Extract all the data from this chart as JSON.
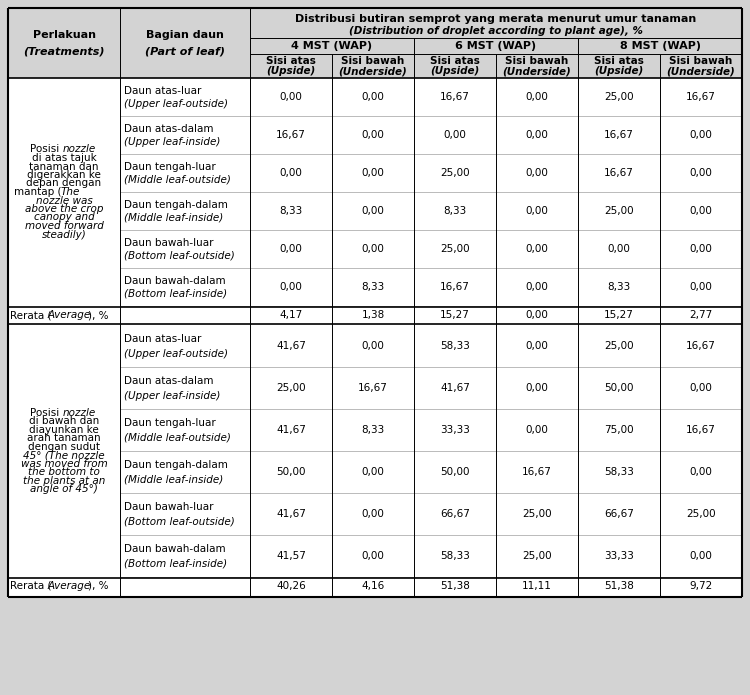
{
  "title_line1": "Distribusi butiran semprot yang merata menurut umur tanaman",
  "title_line2": "(Distribution of droplet according to plant age), %",
  "subheaders": [
    "4 MST (WAP)",
    "6 MST (WAP)",
    "8 MST (WAP)"
  ],
  "subsubheaders": [
    "Sisi atas\n(Upside)",
    "Sisi bawah\n(Underside)",
    "Sisi atas\n(Upside)",
    "Sisi bawah\n(Underside)",
    "Sisi atas\n(Upside)",
    "Sisi bawah\n(Underside)"
  ],
  "section1_treatment": [
    "Posisi nozzle",
    "di atas tajuk",
    "tanaman dan",
    "digerakkan ke",
    "depan dengan",
    "mantap (The",
    "nozzle was",
    "above the crop",
    "canopy and",
    "moved forward",
    "steadily)"
  ],
  "section1_italic_lines": [
    6,
    7,
    8,
    9,
    10
  ],
  "section1_rows": [
    {
      "leaf_id": "Daun atas-luar\n(Upper leaf-outside)",
      "values": [
        "0,00",
        "0,00",
        "16,67",
        "0,00",
        "25,00",
        "16,67"
      ]
    },
    {
      "leaf_id": "Daun atas-dalam\n(Upper leaf-inside)",
      "values": [
        "16,67",
        "0,00",
        "0,00",
        "0,00",
        "16,67",
        "0,00"
      ]
    },
    {
      "leaf_id": "Daun tengah-luar\n(Middle leaf-outside)",
      "values": [
        "0,00",
        "0,00",
        "25,00",
        "0,00",
        "16,67",
        "0,00"
      ]
    },
    {
      "leaf_id": "Daun tengah-dalam\n(Middle leaf-inside)",
      "values": [
        "8,33",
        "0,00",
        "8,33",
        "0,00",
        "25,00",
        "0,00"
      ]
    },
    {
      "leaf_id": "Daun bawah-luar\n(Bottom leaf-outside)",
      "values": [
        "0,00",
        "0,00",
        "25,00",
        "0,00",
        "0,00",
        "0,00"
      ]
    },
    {
      "leaf_id": "Daun bawah-dalam\n(Bottom leaf-inside)",
      "values": [
        "0,00",
        "8,33",
        "16,67",
        "0,00",
        "8,33",
        "0,00"
      ]
    }
  ],
  "section1_avg": [
    "4,17",
    "1,38",
    "15,27",
    "0,00",
    "15,27",
    "2,77"
  ],
  "section2_treatment": [
    "Posisi nozzle",
    "di bawah dan",
    "diayunkan ke",
    "arah tanaman",
    "dengan sudut",
    "45° (The nozzle",
    "was moved from",
    "the bottom to",
    "the plants at an",
    "angle of 45°)"
  ],
  "section2_italic_lines": [
    5,
    6,
    7,
    8,
    9
  ],
  "section2_rows": [
    {
      "leaf_id": "Daun atas-luar\n(Upper leaf-outside)",
      "values": [
        "41,67",
        "0,00",
        "58,33",
        "0,00",
        "25,00",
        "16,67"
      ]
    },
    {
      "leaf_id": "Daun atas-dalam\n(Upper leaf-inside)",
      "values": [
        "25,00",
        "16,67",
        "41,67",
        "0,00",
        "50,00",
        "0,00"
      ]
    },
    {
      "leaf_id": "Daun tengah-luar\n(Middle leaf-outside)",
      "values": [
        "41,67",
        "8,33",
        "33,33",
        "0,00",
        "75,00",
        "16,67"
      ]
    },
    {
      "leaf_id": "Daun tengah-dalam\n(Middle leaf-inside)",
      "values": [
        "50,00",
        "0,00",
        "50,00",
        "16,67",
        "58,33",
        "0,00"
      ]
    },
    {
      "leaf_id": "Daun bawah-luar\n(Bottom leaf-outside)",
      "values": [
        "41,67",
        "0,00",
        "66,67",
        "25,00",
        "66,67",
        "25,00"
      ]
    },
    {
      "leaf_id": "Daun bawah-dalam\n(Bottom leaf-inside)",
      "values": [
        "41,57",
        "0,00",
        "58,33",
        "25,00",
        "33,33",
        "0,00"
      ]
    }
  ],
  "section2_avg": [
    "40,26",
    "4,16",
    "51,38",
    "11,11",
    "51,38",
    "9,72"
  ],
  "bg_color": "#d3d3d3",
  "font_size": 7.5,
  "header_font_size": 8.0
}
